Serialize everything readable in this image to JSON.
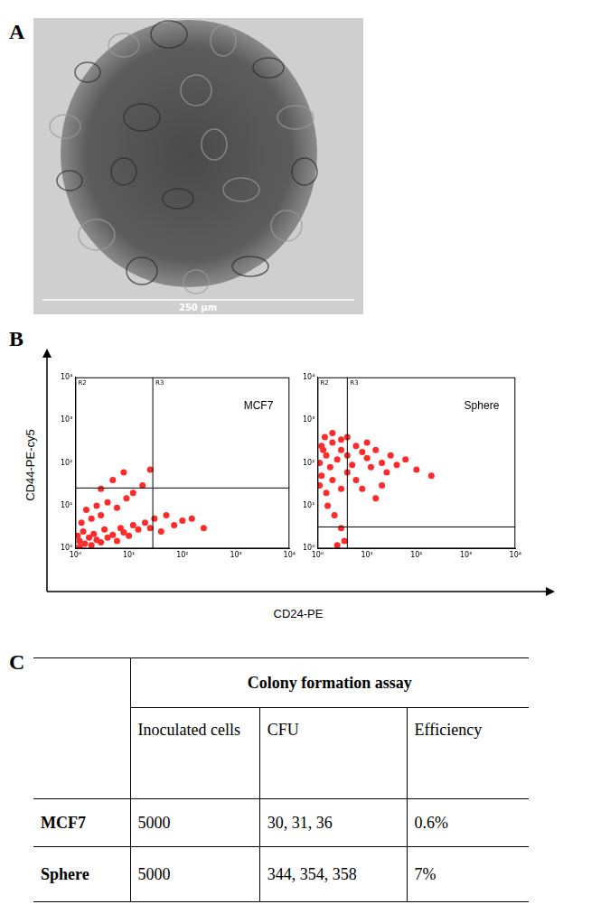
{
  "panel_labels": [
    "A",
    "B",
    "C"
  ],
  "image": {
    "scale_bar": "250 µm"
  },
  "axis_labels": {
    "x": "CD24-PE",
    "y": "CD44-PE-cy5"
  },
  "chart_data": [
    {
      "type": "scatter",
      "title": "MCF7",
      "log": true,
      "grid": false,
      "color": "#ff2a2a",
      "marker": "dot",
      "xlim": [
        1,
        10000
      ],
      "ylim": [
        1,
        10000
      ],
      "xticks": [
        {
          "value": 1,
          "label": "10⁰"
        },
        {
          "value": 10,
          "label": "10¹"
        },
        {
          "value": 100,
          "label": "10²"
        },
        {
          "value": 1000,
          "label": "10³"
        },
        {
          "value": 10000,
          "label": "10⁴"
        }
      ],
      "yticks": [
        {
          "value": 1,
          "label": "10⁰"
        },
        {
          "value": 10,
          "label": "10¹"
        },
        {
          "value": 100,
          "label": "10²"
        },
        {
          "value": 1000,
          "label": "10³"
        },
        {
          "value": 10000,
          "label": "10⁴"
        }
      ],
      "gates": {
        "x": 28,
        "y": 26
      },
      "gate_labels": [
        "R2",
        "R3"
      ],
      "x": [
        1.2,
        1.5,
        2,
        2.5,
        3,
        1.1,
        1.4,
        2.2,
        3.5,
        4,
        5,
        6,
        7,
        8,
        10,
        12,
        15,
        20,
        25,
        30,
        40,
        50,
        70,
        100,
        150,
        250,
        1.3,
        2,
        3,
        1.6,
        2.5,
        4,
        6,
        9,
        12,
        18,
        5,
        3,
        25,
        8,
        1.2,
        1.8
      ],
      "values": [
        1.1,
        1.3,
        1.2,
        1.6,
        1.4,
        2,
        2.5,
        2.2,
        2.8,
        1.8,
        2.1,
        1.5,
        3,
        2.4,
        2,
        3.5,
        2.8,
        4,
        3,
        5,
        2.5,
        6,
        3.5,
        4.5,
        5,
        3,
        4,
        5,
        6,
        8,
        10,
        12,
        9,
        15,
        20,
        30,
        40,
        25,
        70,
        60,
        1.5,
        1.8
      ]
    },
    {
      "type": "scatter",
      "title": "Sphere",
      "log": true,
      "grid": false,
      "color": "#ff2a2a",
      "marker": "dot",
      "xlim": [
        1,
        10000
      ],
      "ylim": [
        1,
        10000
      ],
      "xticks": [
        {
          "value": 1,
          "label": "10⁰"
        },
        {
          "value": 10,
          "label": "10¹"
        },
        {
          "value": 100,
          "label": "10²"
        },
        {
          "value": 1000,
          "label": "10³"
        },
        {
          "value": 10000,
          "label": "10⁴"
        }
      ],
      "yticks": [
        {
          "value": 1,
          "label": "10⁰"
        },
        {
          "value": 10,
          "label": "10¹"
        },
        {
          "value": 100,
          "label": "10²"
        },
        {
          "value": 1000,
          "label": "10³"
        },
        {
          "value": 10000,
          "label": "10⁴"
        }
      ],
      "gates": {
        "x": 4,
        "y": 3.2
      },
      "gate_labels": [
        "R2",
        "R3"
      ],
      "x": [
        1.1,
        1.3,
        1.5,
        2,
        1.2,
        1.8,
        2.5,
        3,
        4,
        5,
        6,
        8,
        10,
        12,
        15,
        20,
        25,
        30,
        40,
        60,
        100,
        200,
        1.1,
        1.5,
        2,
        3,
        4,
        6,
        8,
        1.6,
        2.2,
        3,
        3.5,
        2.5,
        1.4,
        2,
        3,
        1.2,
        4,
        10,
        20,
        15
      ],
      "values": [
        100,
        200,
        150,
        300,
        50,
        80,
        120,
        200,
        150,
        90,
        250,
        180,
        130,
        80,
        200,
        100,
        60,
        150,
        90,
        120,
        70,
        50,
        30,
        20,
        40,
        25,
        60,
        40,
        25,
        10,
        6,
        3,
        1.5,
        1.2,
        400,
        500,
        350,
        250,
        400,
        300,
        30,
        15
      ]
    }
  ],
  "table": {
    "header": "Colony formation assay",
    "columns": [
      "Inoculated cells",
      "CFU",
      "Efficiency"
    ],
    "rows": [
      [
        "MCF7",
        "5000",
        "30, 31, 36",
        "0.6%"
      ],
      [
        "Sphere",
        "5000",
        "344, 354, 358",
        "7%"
      ]
    ]
  }
}
